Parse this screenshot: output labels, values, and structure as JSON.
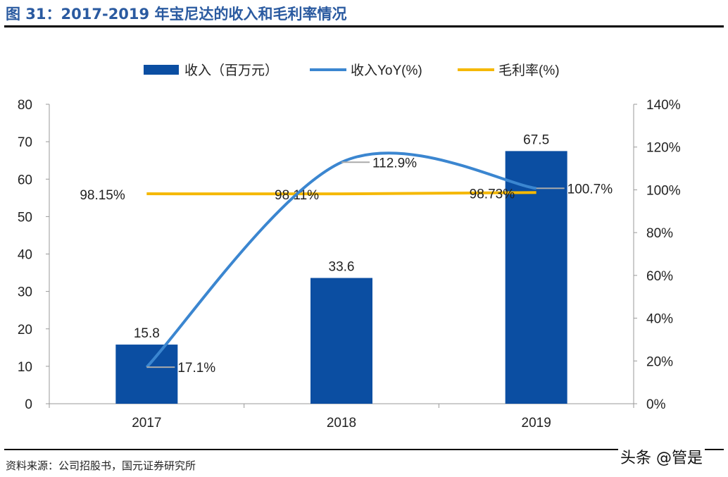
{
  "title": "图 31：2017-2019 年宝尼达的收入和毛利率情况",
  "source": "资料来源：公司招股书，国元证券研究所",
  "watermark": "头条 @管是",
  "chart_data": {
    "type": "bar",
    "categories": [
      "2017",
      "2018",
      "2019"
    ],
    "series": [
      {
        "name": "收入（百万元）",
        "type": "bar",
        "axis": "left",
        "color": "#0b4ea2",
        "values": [
          15.8,
          33.6,
          67.5
        ],
        "labels": [
          "15.8",
          "33.6",
          "67.5"
        ]
      },
      {
        "name": "收入YoY(%)",
        "type": "line",
        "smooth": true,
        "axis": "right",
        "color": "#3b86d0",
        "values": [
          17.1,
          112.9,
          100.7
        ],
        "labels": [
          "17.1%",
          "112.9%",
          "100.7%"
        ]
      },
      {
        "name": "毛利率(%)",
        "type": "line",
        "axis": "right",
        "color": "#f5b800",
        "values": [
          98.15,
          98.11,
          98.73
        ],
        "labels": [
          "98.15%",
          "98.11%",
          "98.73%"
        ]
      }
    ],
    "left_axis": {
      "ylim": [
        0,
        80
      ],
      "ticks": [
        "0",
        "10",
        "20",
        "30",
        "40",
        "50",
        "60",
        "70",
        "80"
      ]
    },
    "right_axis": {
      "ylim": [
        0,
        140
      ],
      "ticks": [
        "0%",
        "20%",
        "40%",
        "60%",
        "80%",
        "100%",
        "120%",
        "140%"
      ]
    },
    "legend": "top",
    "grid": false
  }
}
